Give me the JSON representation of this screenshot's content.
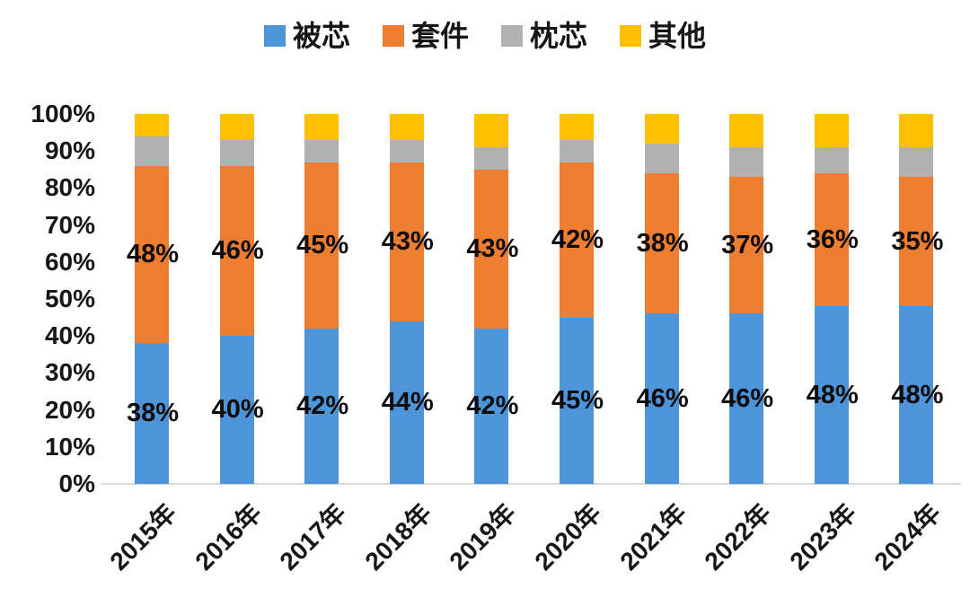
{
  "chart_data": {
    "type": "bar",
    "subtype": "stacked-100-percent-column",
    "title": "",
    "xlabel": "",
    "ylabel": "",
    "grid": false,
    "legend_position": "top",
    "categories": [
      "2015年",
      "2016年",
      "2017年",
      "2018年",
      "2019年",
      "2020年",
      "2021年",
      "2022年",
      "2023年",
      "2024年"
    ],
    "series": [
      {
        "key": "core",
        "name": "被芯",
        "color": "#4D94D8",
        "values": [
          38,
          40,
          42,
          44,
          42,
          45,
          46,
          46,
          48,
          48
        ],
        "data_labels": [
          "38%",
          "40%",
          "42%",
          "44%",
          "42%",
          "45%",
          "46%",
          "46%",
          "48%",
          "48%"
        ],
        "estimated": false
      },
      {
        "key": "suite",
        "name": "套件",
        "color": "#ED7D31",
        "values": [
          48,
          46,
          45,
          43,
          43,
          42,
          38,
          37,
          36,
          35
        ],
        "data_labels": [
          "48%",
          "46%",
          "45%",
          "43%",
          "43%",
          "42%",
          "38%",
          "37%",
          "36%",
          "35%"
        ],
        "estimated": false
      },
      {
        "key": "pillow",
        "name": "枕芯",
        "color": "#B1B1B2",
        "values": [
          8,
          7,
          6,
          6,
          6,
          6,
          8,
          8,
          7,
          8
        ],
        "data_labels": null,
        "estimated": true
      },
      {
        "key": "other",
        "name": "其他",
        "color": "#FFC000",
        "values": [
          6,
          7,
          7,
          7,
          9,
          7,
          8,
          9,
          9,
          9
        ],
        "data_labels": null,
        "estimated": true
      }
    ],
    "y_axis": {
      "min": 0,
      "max": 100,
      "ticks": [
        "0%",
        "10%",
        "20%",
        "30%",
        "40%",
        "50%",
        "60%",
        "70%",
        "80%",
        "90%",
        "100%"
      ]
    }
  },
  "colors": {
    "background": "#ffffff",
    "axis_line": "#d9d9d9",
    "text": "#161616",
    "data_label": "#0c0c0c"
  }
}
